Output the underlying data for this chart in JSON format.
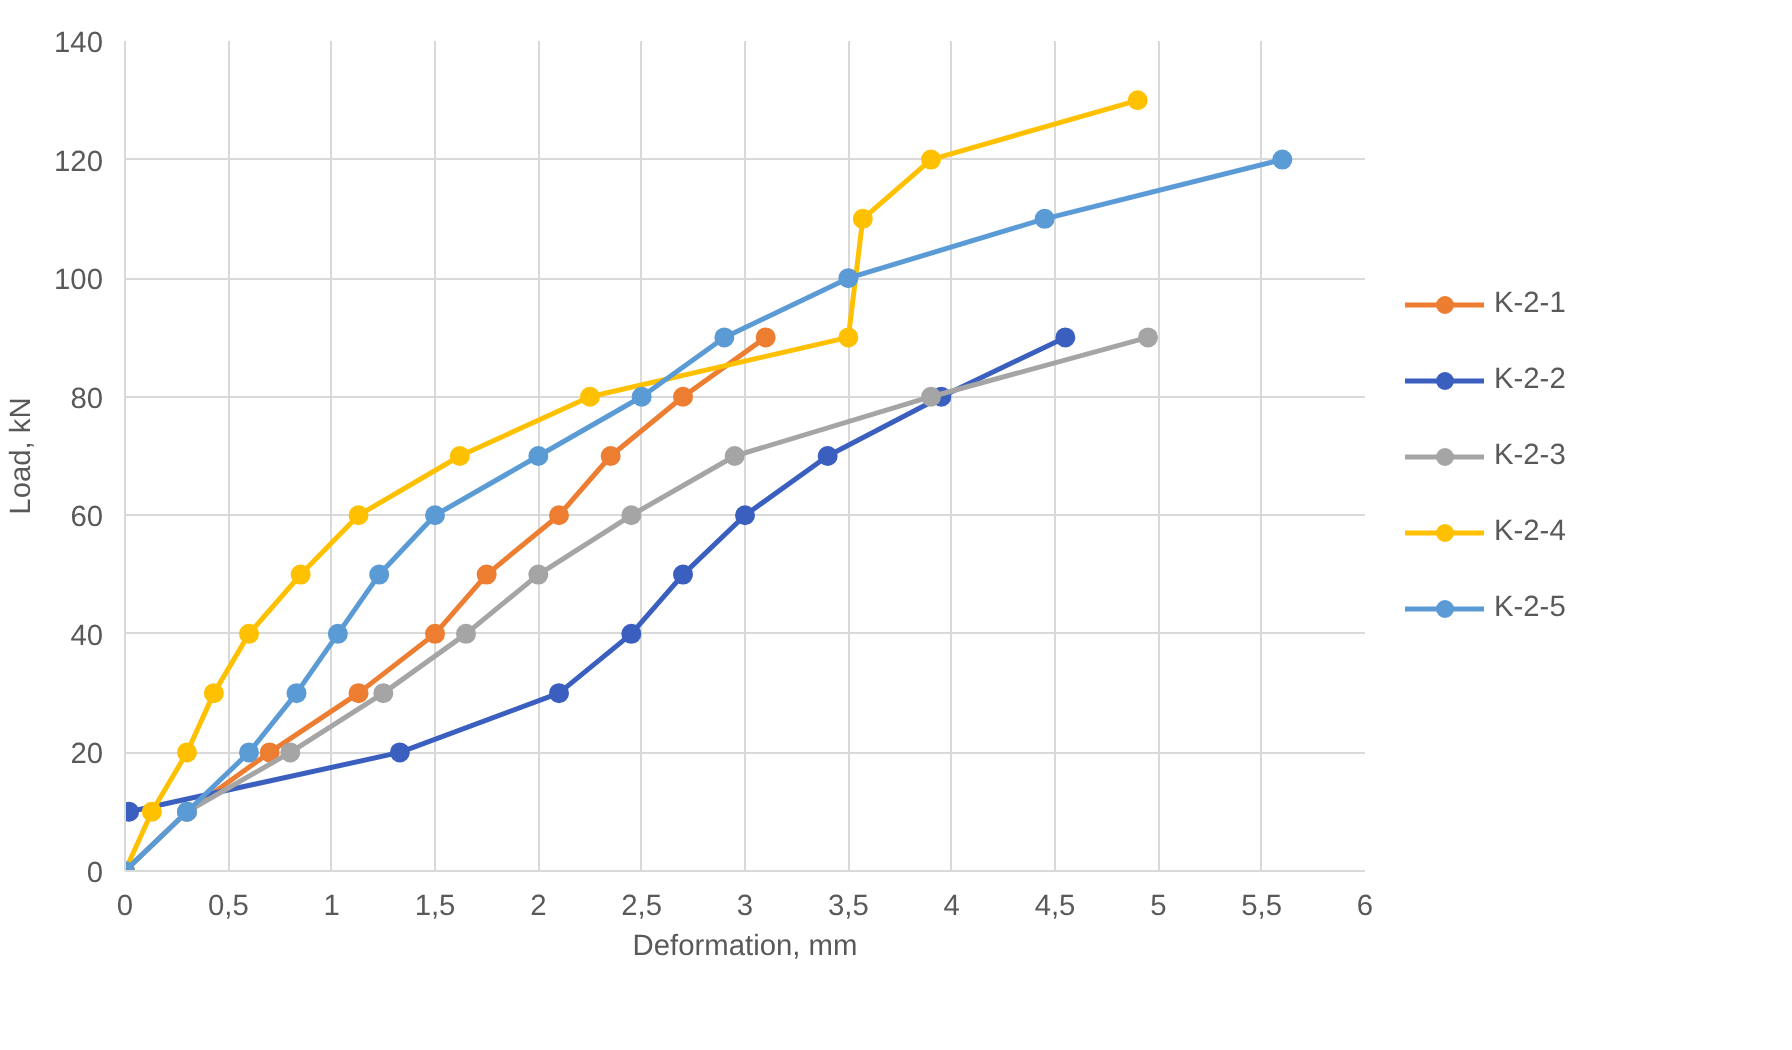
{
  "chart_data": {
    "type": "line",
    "xlabel": "Deformation, mm",
    "ylabel": "Load, kN",
    "xlim": [
      0,
      6
    ],
    "xticks": [
      0,
      {
        "value": 0.5,
        "label": "0,5"
      },
      1,
      {
        "value": 1.5,
        "label": "1,5"
      },
      2,
      {
        "value": 2.5,
        "label": "2,5"
      },
      3,
      {
        "value": 3.5,
        "label": "3,5"
      },
      4,
      {
        "value": 4.5,
        "label": "4,5"
      },
      5,
      {
        "value": 5.5,
        "label": "5,5"
      },
      6
    ],
    "ylim": [
      0,
      140
    ],
    "yticks": [
      0,
      20,
      40,
      60,
      80,
      100,
      120,
      140
    ],
    "grid": true,
    "legend": "right",
    "marker": "circle",
    "series": [
      {
        "name": "K-2-1",
        "color": "#ed7d31",
        "x": [
          0,
          0.3,
          0.7,
          1.13,
          1.5,
          1.75,
          2.1,
          2.35,
          2.7,
          3.1
        ],
        "values": [
          0,
          10,
          20,
          30,
          40,
          50,
          60,
          70,
          80,
          90
        ]
      },
      {
        "name": "K-2-2",
        "color": "#3a5fbf",
        "x": [
          0.02,
          1.33,
          2.1,
          2.45,
          2.7,
          3.0,
          3.4,
          3.95,
          4.55
        ],
        "values": [
          10,
          20,
          30,
          40,
          50,
          60,
          70,
          80,
          90
        ]
      },
      {
        "name": "K-2-3",
        "color": "#a5a5a5",
        "x": [
          0,
          0.3,
          0.8,
          1.25,
          1.65,
          2.0,
          2.45,
          2.95,
          3.9,
          4.95
        ],
        "values": [
          0,
          10,
          20,
          30,
          40,
          50,
          60,
          70,
          80,
          90
        ]
      },
      {
        "name": "K-2-4",
        "color": "#ffc000",
        "x": [
          0,
          0.13,
          0.3,
          0.43,
          0.6,
          0.85,
          1.13,
          1.62,
          2.25,
          3.5,
          3.57,
          3.9,
          4.9
        ],
        "values": [
          0,
          10,
          20,
          30,
          40,
          50,
          60,
          70,
          80,
          90,
          110,
          120,
          130
        ]
      },
      {
        "name": "K-2-5",
        "color": "#5b9bd5",
        "x": [
          0,
          0.3,
          0.6,
          0.83,
          1.03,
          1.23,
          1.5,
          2.0,
          2.5,
          2.9,
          3.5,
          4.45,
          5.6
        ],
        "values": [
          0,
          10,
          20,
          30,
          40,
          50,
          60,
          70,
          80,
          90,
          100,
          110,
          120
        ]
      }
    ]
  }
}
